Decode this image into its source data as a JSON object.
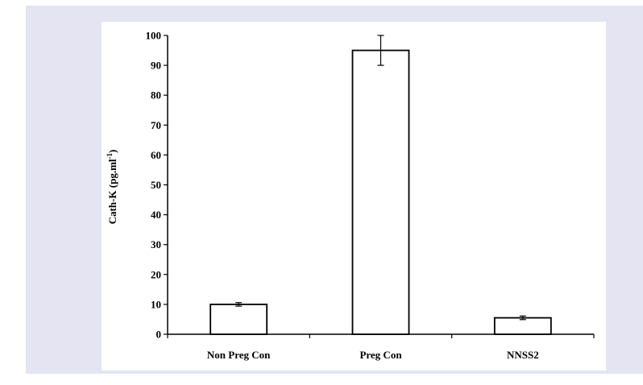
{
  "chart_data": {
    "type": "bar",
    "categories": [
      "Non Preg Con",
      "Preg Con",
      "NNSS2"
    ],
    "values": [
      10,
      95,
      5.5
    ],
    "errors": [
      0.6,
      5,
      0.6
    ],
    "ylabel_main": "Cath-K (pg.ml",
    "ylabel_sup": "-1",
    "ylabel_close": ")",
    "ylim": [
      0,
      100
    ],
    "yticks": [
      0,
      10,
      20,
      30,
      40,
      50,
      60,
      70,
      80,
      90,
      100
    ],
    "grid": false,
    "colors": {
      "bar_fill": "#ffffff",
      "bar_stroke": "#000000",
      "frame": "#e4e4f2"
    }
  }
}
